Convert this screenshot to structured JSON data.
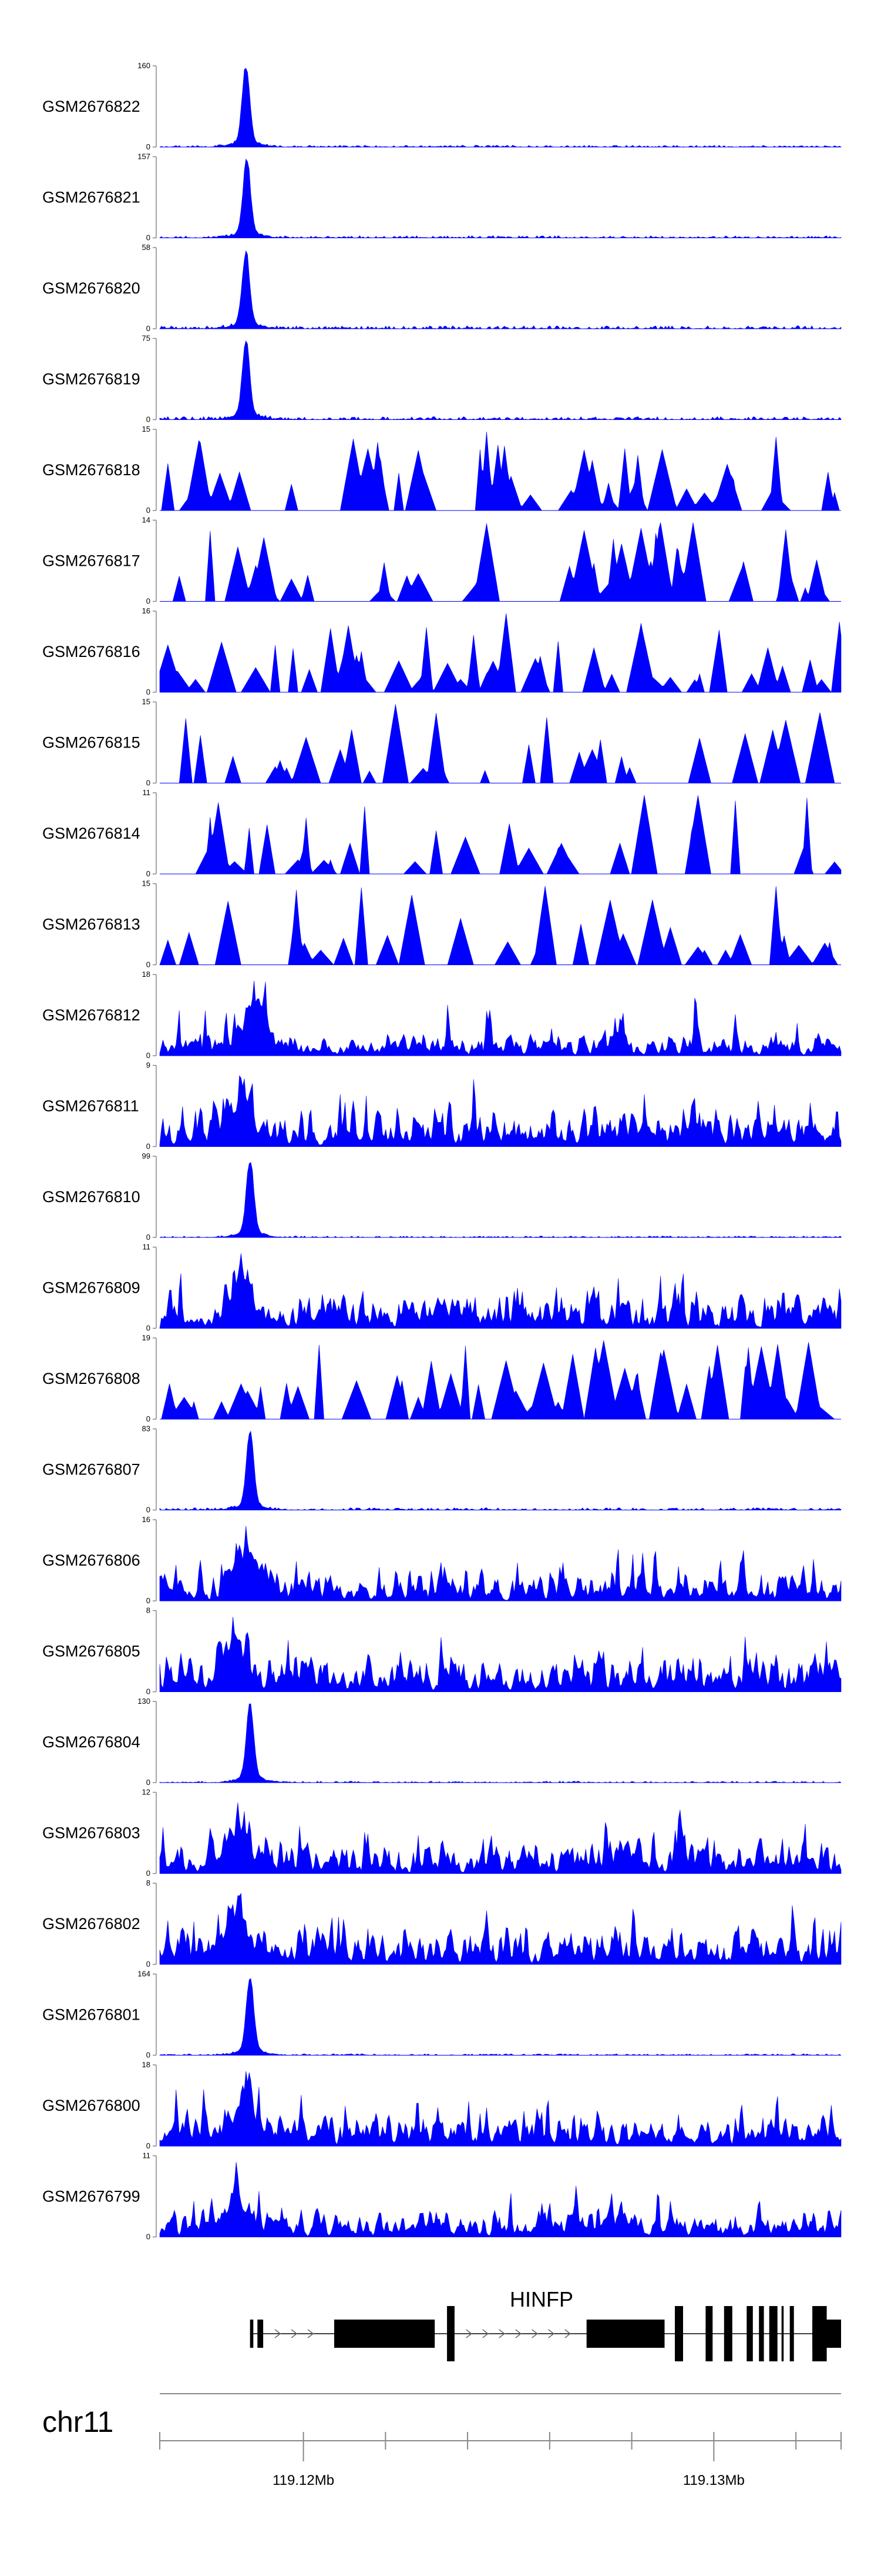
{
  "chart_data": {
    "type": "area",
    "title": "",
    "chromosome": "chr11",
    "colors": {
      "signal": "#0000ff",
      "gene": "#000000",
      "axis": "#888888"
    },
    "x_range_bp": [
      119116500,
      119133100
    ],
    "x_ticks": [
      {
        "pos": 119120000,
        "label": "119.12Mb"
      },
      {
        "pos": 119122000,
        "label": ""
      },
      {
        "pos": 119124000,
        "label": ""
      },
      {
        "pos": 119126000,
        "label": ""
      },
      {
        "pos": 119128000,
        "label": ""
      },
      {
        "pos": 119130000,
        "label": "119.13Mb"
      },
      {
        "pos": 119132000,
        "label": ""
      }
    ],
    "gene": {
      "name": "HINFP",
      "strand": "+",
      "start": 119118700,
      "end": 119133100,
      "exons": [
        {
          "start": 119118700,
          "end": 119118780,
          "type": "utr"
        },
        {
          "start": 119118880,
          "end": 119119020,
          "type": "utr"
        },
        {
          "start": 119120750,
          "end": 119123200,
          "type": "cds"
        },
        {
          "start": 119123500,
          "end": 119123680,
          "type": "cds"
        },
        {
          "start": 119126900,
          "end": 119128800,
          "type": "cds"
        },
        {
          "start": 119129050,
          "end": 119129250,
          "type": "cds"
        },
        {
          "start": 119129800,
          "end": 119129970,
          "type": "cds"
        },
        {
          "start": 119130250,
          "end": 119130450,
          "type": "cds"
        },
        {
          "start": 119130800,
          "end": 119130950,
          "type": "cds"
        },
        {
          "start": 119131100,
          "end": 119131220,
          "type": "cds"
        },
        {
          "start": 119131350,
          "end": 119131550,
          "type": "cds"
        },
        {
          "start": 119131650,
          "end": 119131700,
          "type": "cds"
        },
        {
          "start": 119131850,
          "end": 119131950,
          "type": "cds"
        },
        {
          "start": 119132400,
          "end": 119133100,
          "type": "cds"
        }
      ]
    },
    "tracks": [
      {
        "name": "GSM2676822",
        "ymax": 160,
        "ymin": 0,
        "profile": "peak",
        "peak_pos": 119118600,
        "peak_frac": 1.0,
        "noise": 0.025,
        "seed": 22
      },
      {
        "name": "GSM2676821",
        "ymax": 157,
        "ymin": 0,
        "profile": "peak",
        "peak_pos": 119118620,
        "peak_frac": 0.98,
        "noise": 0.03,
        "seed": 21
      },
      {
        "name": "GSM2676820",
        "ymax": 58,
        "ymin": 0,
        "profile": "peak",
        "peak_pos": 119118600,
        "peak_frac": 0.97,
        "noise": 0.04,
        "seed": 20
      },
      {
        "name": "GSM2676819",
        "ymax": 75,
        "ymin": 0,
        "profile": "peak",
        "peak_pos": 119118600,
        "peak_frac": 0.96,
        "noise": 0.04,
        "seed": 19
      },
      {
        "name": "GSM2676818",
        "ymax": 15,
        "ymin": 0,
        "profile": "sparse",
        "n_spikes": 48,
        "seed": 18
      },
      {
        "name": "GSM2676817",
        "ymax": 14,
        "ymin": 0,
        "profile": "sparse",
        "n_spikes": 44,
        "seed": 17
      },
      {
        "name": "GSM2676816",
        "ymax": 16,
        "ymin": 0,
        "profile": "sparse",
        "n_spikes": 46,
        "seed": 16
      },
      {
        "name": "GSM2676815",
        "ymax": 15,
        "ymin": 0,
        "profile": "sparse",
        "n_spikes": 30,
        "seed": 15
      },
      {
        "name": "GSM2676814",
        "ymax": 11,
        "ymin": 0,
        "profile": "sparse",
        "n_spikes": 32,
        "seed": 14
      },
      {
        "name": "GSM2676813",
        "ymax": 15,
        "ymin": 0,
        "profile": "sparse",
        "n_spikes": 34,
        "seed": 13
      },
      {
        "name": "GSM2676812",
        "ymax": 18,
        "ymin": 0,
        "profile": "dense",
        "peak_pos": 119118800,
        "peak_frac": 0.95,
        "density": 0.25,
        "seed": 12
      },
      {
        "name": "GSM2676811",
        "ymax": 9,
        "ymin": 0,
        "profile": "dense",
        "peak_pos": 119118500,
        "peak_frac": 0.9,
        "density": 0.5,
        "seed": 11
      },
      {
        "name": "GSM2676810",
        "ymax": 99,
        "ymin": 0,
        "profile": "peak",
        "peak_pos": 119118700,
        "peak_frac": 0.97,
        "noise": 0.02,
        "seed": 10
      },
      {
        "name": "GSM2676809",
        "ymax": 11,
        "ymin": 0,
        "profile": "dense",
        "peak_pos": 119118500,
        "peak_frac": 0.95,
        "density": 0.4,
        "seed": 9
      },
      {
        "name": "GSM2676808",
        "ymax": 19,
        "ymin": 0,
        "profile": "sparse",
        "n_spikes": 50,
        "seed": 8
      },
      {
        "name": "GSM2676807",
        "ymax": 83,
        "ymin": 0,
        "profile": "peak",
        "peak_pos": 119118700,
        "peak_frac": 0.97,
        "noise": 0.03,
        "seed": 7
      },
      {
        "name": "GSM2676806",
        "ymax": 16,
        "ymin": 0,
        "profile": "dense",
        "peak_pos": 119118600,
        "peak_frac": 0.95,
        "density": 0.35,
        "seed": 6
      },
      {
        "name": "GSM2676805",
        "ymax": 8,
        "ymin": 0,
        "profile": "dense",
        "peak_pos": 119118300,
        "peak_frac": 0.95,
        "density": 0.45,
        "seed": 5
      },
      {
        "name": "GSM2676804",
        "ymax": 130,
        "ymin": 0,
        "profile": "peak",
        "peak_pos": 119118700,
        "peak_frac": 0.98,
        "noise": 0.02,
        "seed": 4
      },
      {
        "name": "GSM2676803",
        "ymax": 12,
        "ymin": 0,
        "profile": "dense",
        "peak_pos": 119118400,
        "peak_frac": 0.9,
        "density": 0.4,
        "seed": 3
      },
      {
        "name": "GSM2676802",
        "ymax": 8,
        "ymin": 0,
        "profile": "dense",
        "peak_pos": 119118400,
        "peak_frac": 0.9,
        "density": 0.5,
        "seed": 2
      },
      {
        "name": "GSM2676801",
        "ymax": 164,
        "ymin": 0,
        "profile": "peak",
        "peak_pos": 119118700,
        "peak_frac": 0.98,
        "noise": 0.02,
        "seed": 1
      },
      {
        "name": "GSM2676800",
        "ymax": 18,
        "ymin": 0,
        "profile": "dense",
        "peak_pos": 119118600,
        "peak_frac": 0.95,
        "density": 0.35,
        "seed": 100
      },
      {
        "name": "GSM2676799",
        "ymax": 11,
        "ymin": 0,
        "profile": "dense",
        "peak_pos": 119118400,
        "peak_frac": 0.95,
        "density": 0.45,
        "seed": 99
      }
    ]
  }
}
